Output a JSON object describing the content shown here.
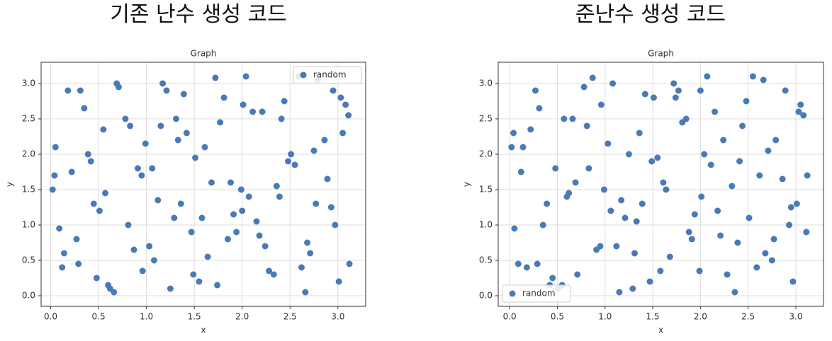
{
  "chart_data": [
    {
      "type": "scatter",
      "heading": "기존 난수 생성 코드",
      "title": "Graph",
      "x_label": "x",
      "y_label": "y",
      "legend": "upper right",
      "grid": true,
      "xlim": [
        -0.1,
        3.29
      ],
      "ylim": [
        -0.15,
        3.3
      ],
      "xticks": [
        {
          "value": 0,
          "label": "0.0"
        },
        {
          "value": 0.5,
          "label": "0.5"
        },
        {
          "value": 1,
          "label": "1.0"
        },
        {
          "value": 1.5,
          "label": "1.5"
        },
        {
          "value": 2,
          "label": "2.0"
        },
        {
          "value": 2.5,
          "label": "2.5"
        },
        {
          "value": 3,
          "label": "3.0"
        }
      ],
      "yticks": [
        {
          "value": 0,
          "label": "0.0"
        },
        {
          "value": 0.5,
          "label": "0.5"
        },
        {
          "value": 1,
          "label": "1.0"
        },
        {
          "value": 1.5,
          "label": "1.5"
        },
        {
          "value": 2,
          "label": "2.0"
        },
        {
          "value": 2.5,
          "label": "2.5"
        },
        {
          "value": 3,
          "label": "3.0"
        }
      ],
      "series": [
        {
          "name": "random",
          "color": "#4a7ab5",
          "x": [
            0.05,
            0.12,
            0.31,
            0.45,
            0.62,
            0.78,
            0.91,
            1.03,
            1.17,
            1.29,
            1.42,
            1.55,
            1.68,
            1.81,
            1.94,
            2.07,
            2.21,
            2.33,
            2.48,
            2.59,
            2.71,
            2.86,
            2.97,
            3.08,
            0.02,
            0.18,
            0.27,
            0.39,
            0.51,
            0.66,
            0.83,
            0.95,
            1.08,
            1.21,
            1.36,
            1.47,
            1.61,
            1.74,
            1.88,
            2.01,
            2.15,
            2.28,
            2.41,
            2.55,
            2.68,
            2.79,
            2.93,
            3.05,
            3.12,
            0.09,
            0.22,
            0.35,
            0.48,
            0.57,
            0.71,
            0.87,
            0.99,
            1.12,
            1.25,
            1.39,
            1.51,
            1.64,
            1.77,
            1.91,
            2.04,
            2.18,
            2.36,
            2.44,
            2.62,
            2.75,
            2.89,
            3.01,
            3.11,
            0.14,
            0.42,
            0.69,
            0.96,
            1.33,
            1.58,
            1.85,
            2.11,
            2.39,
            2.66,
            2.95,
            0.04,
            0.29,
            0.55,
            0.81,
            1.06,
            1.31,
            1.49,
            1.72,
            1.99,
            2.24,
            2.51,
            2.77,
            3.03,
            0.6,
            1.15,
            2.0
          ],
          "y": [
            2.1,
            0.4,
            2.9,
            1.3,
            0.1,
            2.5,
            1.8,
            0.7,
            3.0,
            1.1,
            2.3,
            0.2,
            1.6,
            2.8,
            0.9,
            1.4,
            2.6,
            0.3,
            1.9,
            3.1,
            0.6,
            2.2,
            1.0,
            2.7,
            1.5,
            2.9,
            0.8,
            2.0,
            1.2,
            0.05,
            2.4,
            1.7,
            0.5,
            2.9,
            1.3,
            0.9,
            2.1,
            0.15,
            1.6,
            2.7,
            1.05,
            0.35,
            2.5,
            1.85,
            0.75,
            3.05,
            1.25,
            2.3,
            0.45,
            0.95,
            1.75,
            2.65,
            0.25,
            1.45,
            2.95,
            0.65,
            2.15,
            1.35,
            0.1,
            2.85,
            1.95,
            0.55,
            2.45,
            1.15,
            3.1,
            0.85,
            1.55,
            2.75,
            0.4,
            2.05,
            1.65,
            0.2,
            2.55,
            0.6,
            1.9,
            3.0,
            0.35,
            2.2,
            1.1,
            0.8,
            2.6,
            1.4,
            0.05,
            2.9,
            1.7,
            0.45,
            2.35,
            1.0,
            1.8,
            2.5,
            0.3,
            3.08,
            1.5,
            0.7,
            2.0,
            1.3,
            2.8,
            0.15,
            2.4,
            1.2
          ]
        }
      ]
    },
    {
      "type": "scatter",
      "heading": "준난수 생성 코드",
      "title": "Graph",
      "x_label": "x",
      "y_label": "y",
      "legend": "lower left",
      "grid": true,
      "xlim": [
        -0.12,
        3.29
      ],
      "ylim": [
        -0.15,
        3.3
      ],
      "xticks": [
        {
          "value": 0,
          "label": "0.0"
        },
        {
          "value": 0.5,
          "label": "0.5"
        },
        {
          "value": 1,
          "label": "1.0"
        },
        {
          "value": 1.5,
          "label": "1.5"
        },
        {
          "value": 2,
          "label": "2.0"
        },
        {
          "value": 2.5,
          "label": "2.5"
        },
        {
          "value": 3,
          "label": "3.0"
        }
      ],
      "yticks": [
        {
          "value": 0,
          "label": "0.0"
        },
        {
          "value": 0.5,
          "label": "0.5"
        },
        {
          "value": 1,
          "label": "1.0"
        },
        {
          "value": 1.5,
          "label": "1.5"
        },
        {
          "value": 2,
          "label": "2.0"
        },
        {
          "value": 2.5,
          "label": "2.5"
        },
        {
          "value": 3,
          "label": "3.0"
        }
      ],
      "series": [
        {
          "name": "random",
          "color": "#4a7ab5",
          "x": [
            0.05,
            0.12,
            0.31,
            0.45,
            0.62,
            0.78,
            0.91,
            1.03,
            1.17,
            1.29,
            1.42,
            1.55,
            1.68,
            1.81,
            1.94,
            2.07,
            2.21,
            2.33,
            2.48,
            2.59,
            2.71,
            2.86,
            2.97,
            3.08,
            0.02,
            0.18,
            0.27,
            0.39,
            0.51,
            0.66,
            0.83,
            0.95,
            1.08,
            1.21,
            1.36,
            1.47,
            1.61,
            1.74,
            1.88,
            2.01,
            2.15,
            2.28,
            2.41,
            2.55,
            2.68,
            2.79,
            2.93,
            3.05,
            3.12,
            0.09,
            0.22,
            0.35,
            0.48,
            0.57,
            0.71,
            0.87,
            0.99,
            1.12,
            1.25,
            1.39,
            1.51,
            1.64,
            1.77,
            1.91,
            2.04,
            2.18,
            2.36,
            2.44,
            2.62,
            2.75,
            2.89,
            3.01,
            3.11,
            0.14,
            0.42,
            0.69,
            0.96,
            1.33,
            1.58,
            1.85,
            2.11,
            2.39,
            2.66,
            2.95,
            0.04,
            0.29,
            0.55,
            0.81,
            1.06,
            1.31,
            1.49,
            1.72,
            1.99,
            2.24,
            2.51,
            2.77,
            3.03,
            0.6,
            1.15,
            2.0
          ],
          "y": [
            0.95,
            1.75,
            2.65,
            0.25,
            1.45,
            2.95,
            0.65,
            2.15,
            1.35,
            0.1,
            2.85,
            1.95,
            0.55,
            2.45,
            1.15,
            3.1,
            0.85,
            1.55,
            2.75,
            0.4,
            2.05,
            1.65,
            0.2,
            2.55,
            2.1,
            0.4,
            2.9,
            1.3,
            0.1,
            2.5,
            1.8,
            0.7,
            3.0,
            1.1,
            2.3,
            0.2,
            1.6,
            2.8,
            0.9,
            1.4,
            2.6,
            0.3,
            1.9,
            3.1,
            0.6,
            2.2,
            1.0,
            2.7,
            1.7,
            0.45,
            2.35,
            1.0,
            1.8,
            2.5,
            0.3,
            3.08,
            1.5,
            0.7,
            2.0,
            1.3,
            2.8,
            1.5,
            2.9,
            0.8,
            2.0,
            1.2,
            0.05,
            2.4,
            1.7,
            0.5,
            2.9,
            1.3,
            0.9,
            2.1,
            0.15,
            1.6,
            2.7,
            1.05,
            0.35,
            2.5,
            1.85,
            0.75,
            3.05,
            1.25,
            2.3,
            0.45,
            0.15,
            2.4,
            1.2,
            0.6,
            1.9,
            3.0,
            0.35,
            2.2,
            1.1,
            0.8,
            2.6,
            1.4,
            0.05,
            2.9
          ]
        }
      ]
    }
  ]
}
